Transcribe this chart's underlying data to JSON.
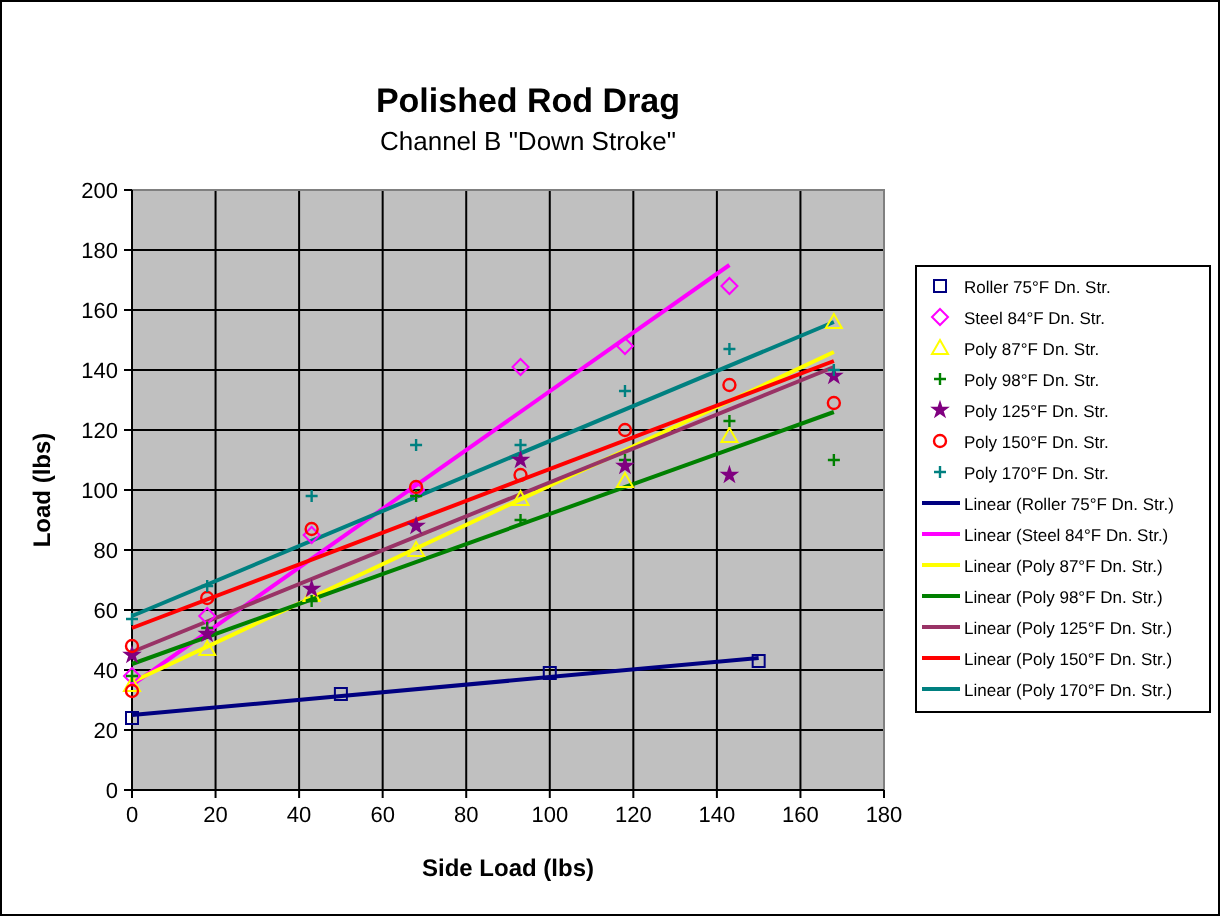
{
  "chart_data": {
    "type": "scatter",
    "title": "Polished Rod Drag",
    "subtitle": "Channel B \"Down Stroke\"",
    "xlabel": "Side Load (lbs)",
    "ylabel": "Load (lbs)",
    "xlim": [
      0,
      180
    ],
    "xticks": [
      0,
      20,
      40,
      60,
      80,
      100,
      120,
      140,
      160,
      180
    ],
    "ylim": [
      0,
      200
    ],
    "yticks": [
      0,
      20,
      40,
      60,
      80,
      100,
      120,
      140,
      160,
      180,
      200
    ],
    "grid": true,
    "legend": "right",
    "series": [
      {
        "name": "Roller 75°F Dn. Str.",
        "marker": "square",
        "color": "#000080",
        "x": [
          0,
          50,
          100,
          150
        ],
        "values": [
          24,
          32,
          39,
          43
        ]
      },
      {
        "name": "Steel 84°F Dn. Str.",
        "marker": "diamond",
        "color": "#ff00ff",
        "x": [
          0,
          18,
          43,
          68,
          93,
          118,
          143
        ],
        "values": [
          38,
          58,
          85,
          100,
          141,
          148,
          168
        ]
      },
      {
        "name": "Poly 87°F Dn. Str.",
        "marker": "triangle",
        "color": "#ffff00",
        "x": [
          0,
          18,
          43,
          68,
          93,
          118,
          143,
          168
        ],
        "values": [
          35,
          47,
          65,
          80,
          97,
          103,
          118,
          156
        ]
      },
      {
        "name": "Poly 98°F Dn. Str.",
        "marker": "cross",
        "color": "#008000",
        "x": [
          0,
          18,
          43,
          68,
          93,
          118,
          143,
          168
        ],
        "values": [
          38,
          54,
          63,
          98,
          90,
          110,
          123,
          110
        ]
      },
      {
        "name": "Poly 125°F Dn. Str.",
        "marker": "star",
        "color": "#800080",
        "x": [
          0,
          18,
          43,
          68,
          93,
          118,
          143,
          168
        ],
        "values": [
          45,
          52,
          67,
          88,
          110,
          108,
          105,
          138
        ]
      },
      {
        "name": "Poly 150°F Dn. Str.",
        "marker": "circle",
        "color": "#ff0000",
        "x": [
          0,
          0,
          18,
          43,
          68,
          93,
          118,
          143,
          168
        ],
        "values": [
          48,
          33,
          64,
          87,
          101,
          105,
          120,
          135,
          129
        ]
      },
      {
        "name": "Poly 170°F Dn. Str.",
        "marker": "cross",
        "color": "#008080",
        "x": [
          0,
          18,
          43,
          68,
          93,
          118,
          143,
          168
        ],
        "values": [
          57,
          68,
          98,
          115,
          115,
          133,
          147,
          140
        ]
      },
      {
        "name": "Linear (Roller 75°F Dn. Str.)",
        "type": "line",
        "color": "#000080",
        "x": [
          0,
          150
        ],
        "values": [
          25,
          44
        ]
      },
      {
        "name": "Linear (Steel 84°F Dn. Str.)",
        "type": "line",
        "color": "#ff00ff",
        "x": [
          0,
          143
        ],
        "values": [
          35,
          175
        ]
      },
      {
        "name": "Linear (Poly 87°F Dn. Str.)",
        "type": "line",
        "color": "#ffff00",
        "x": [
          0,
          168
        ],
        "values": [
          36,
          146
        ]
      },
      {
        "name": "Linear (Poly 98°F Dn. Str.)",
        "type": "line",
        "color": "#008000",
        "x": [
          0,
          168
        ],
        "values": [
          42,
          126
        ]
      },
      {
        "name": "Linear (Poly 125°F Dn. Str.)",
        "type": "line",
        "color": "#993366",
        "x": [
          0,
          168
        ],
        "values": [
          46,
          141
        ]
      },
      {
        "name": "Linear (Poly 150°F Dn. Str.)",
        "type": "line",
        "color": "#ff0000",
        "x": [
          0,
          168
        ],
        "values": [
          54,
          143
        ]
      },
      {
        "name": "Linear (Poly 170°F Dn. Str.)",
        "type": "line",
        "color": "#008080",
        "x": [
          0,
          168
        ],
        "values": [
          58,
          156
        ]
      }
    ]
  }
}
